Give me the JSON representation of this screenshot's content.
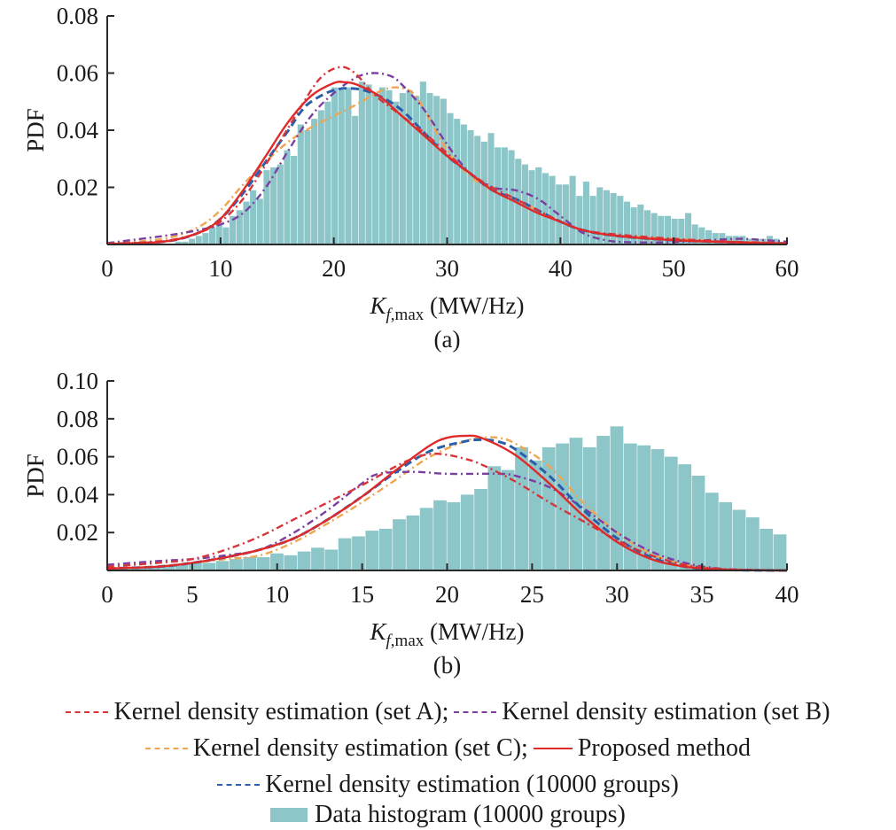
{
  "chart_data": [
    {
      "id": "a",
      "type": "bar",
      "panel_label": "(a)",
      "xlabel_main": "K",
      "xlabel_sub": "f,max",
      "xlabel_unit": " (MW/Hz)",
      "ylabel": "PDF",
      "xlim": [
        0,
        60
      ],
      "ylim": [
        0,
        0.08
      ],
      "xticks": [
        0,
        10,
        20,
        30,
        40,
        50,
        60
      ],
      "xtick_labels": [
        "0",
        "10",
        "20",
        "30",
        "40",
        "50",
        "60"
      ],
      "yticks": [
        0.02,
        0.04,
        0.06,
        0.08
      ],
      "ytick_labels": [
        "0.02",
        "0.04",
        "0.06",
        "0.08"
      ],
      "grid": false,
      "histogram": {
        "name": "Data histogram (10000 groups)",
        "bin_width": 0.6,
        "bin_start": 0,
        "values": [
          0,
          0,
          0,
          0,
          0,
          0,
          0,
          0,
          0,
          0,
          0.001,
          0.001,
          0.002,
          0.003,
          0.004,
          0.006,
          0.007,
          0.006,
          0.01,
          0.012,
          0.015,
          0.019,
          0.016,
          0.026,
          0.027,
          0.028,
          0.033,
          0.031,
          0.042,
          0.04,
          0.044,
          0.047,
          0.05,
          0.055,
          0.054,
          0.055,
          0.045,
          0.057,
          0.056,
          0.053,
          0.055,
          0.054,
          0.05,
          0.053,
          0.054,
          0.052,
          0.057,
          0.053,
          0.052,
          0.051,
          0.046,
          0.044,
          0.042,
          0.04,
          0.038,
          0.036,
          0.039,
          0.034,
          0.034,
          0.033,
          0.03,
          0.028,
          0.026,
          0.027,
          0.025,
          0.024,
          0.021,
          0.021,
          0.024,
          0.017,
          0.022,
          0.017,
          0.02,
          0.019,
          0.018,
          0.017,
          0.015,
          0.013,
          0.014,
          0.012,
          0.011,
          0.01,
          0.01,
          0.009,
          0.009,
          0.011,
          0.007,
          0.006,
          0.005,
          0.004,
          0.004,
          0.003,
          0.003,
          0.003,
          0.002,
          0.002,
          0.002,
          0.003,
          0.002,
          0.001,
          0.001,
          0.001,
          0.001,
          0.001,
          0,
          0,
          0,
          0,
          0,
          0
        ]
      },
      "series": [
        {
          "name": "Kernel density estimation (set A)",
          "key": "kdeA",
          "x": [
            0,
            5,
            8,
            10,
            12,
            14,
            16,
            18,
            19,
            20,
            21,
            22,
            23,
            24,
            26,
            28,
            30,
            32,
            34,
            36,
            38,
            40,
            42,
            45,
            50,
            55,
            60
          ],
          "y": [
            0.0003,
            0.0012,
            0.004,
            0.008,
            0.016,
            0.028,
            0.041,
            0.054,
            0.059,
            0.0615,
            0.062,
            0.0595,
            0.055,
            0.051,
            0.045,
            0.039,
            0.032,
            0.025,
            0.02,
            0.016,
            0.012,
            0.008,
            0.005,
            0.0035,
            0.002,
            0.001,
            0.0005
          ]
        },
        {
          "name": "Kernel density estimation (set B)",
          "key": "kdeB",
          "x": [
            0,
            5,
            8,
            10,
            12,
            14,
            16,
            18,
            20,
            22,
            23.5,
            25,
            26,
            28,
            30,
            32,
            34,
            36,
            38,
            40,
            42,
            44,
            46,
            50,
            53,
            56,
            58,
            60
          ],
          "y": [
            0.0005,
            0.003,
            0.005,
            0.007,
            0.011,
            0.02,
            0.033,
            0.045,
            0.053,
            0.0585,
            0.06,
            0.059,
            0.056,
            0.047,
            0.035,
            0.025,
            0.02,
            0.019,
            0.016,
            0.01,
            0.004,
            0.0015,
            0.0008,
            0.0008,
            0.0015,
            0.002,
            0.0015,
            0.001
          ]
        },
        {
          "name": "Kernel density estimation (set C)",
          "key": "kdeC",
          "x": [
            0,
            5,
            8,
            10,
            12,
            14,
            16,
            18,
            20,
            22,
            24,
            25.5,
            27,
            28,
            30,
            32,
            34,
            36,
            38,
            40,
            42,
            45,
            50,
            55,
            60
          ],
          "y": [
            0.0003,
            0.002,
            0.006,
            0.012,
            0.021,
            0.029,
            0.036,
            0.041,
            0.045,
            0.049,
            0.0535,
            0.055,
            0.053,
            0.047,
            0.033,
            0.024,
            0.019,
            0.016,
            0.012,
            0.008,
            0.005,
            0.003,
            0.002,
            0.001,
            0.0005
          ]
        },
        {
          "name": "Proposed method",
          "key": "proposed",
          "x": [
            0,
            5,
            8,
            10,
            12,
            14,
            16,
            18,
            20,
            21,
            22,
            24,
            26,
            28,
            30,
            32,
            34,
            36,
            38,
            40,
            42,
            45,
            50,
            55,
            60
          ],
          "y": [
            0.0002,
            0.001,
            0.004,
            0.009,
            0.019,
            0.031,
            0.043,
            0.052,
            0.0565,
            0.0568,
            0.056,
            0.052,
            0.045,
            0.038,
            0.031,
            0.025,
            0.019,
            0.015,
            0.011,
            0.008,
            0.005,
            0.003,
            0.0015,
            0.0008,
            0.0003
          ]
        },
        {
          "name": "Kernel density estimation (10000 groups)",
          "key": "kde10000",
          "x": [
            0,
            5,
            8,
            10,
            12,
            14,
            16,
            17,
            18,
            20,
            22,
            24,
            26,
            28,
            30,
            32,
            34,
            36,
            38,
            40,
            42,
            45,
            50,
            55,
            60
          ],
          "y": [
            0.0002,
            0.001,
            0.004,
            0.009,
            0.018,
            0.029,
            0.04,
            0.046,
            0.05,
            0.054,
            0.0545,
            0.052,
            0.047,
            0.039,
            0.031,
            0.025,
            0.019,
            0.016,
            0.012,
            0.008,
            0.005,
            0.003,
            0.0015,
            0.0008,
            0.0003
          ]
        }
      ]
    },
    {
      "id": "b",
      "type": "bar",
      "panel_label": "(b)",
      "xlabel_main": "K",
      "xlabel_sub": "f,max",
      "xlabel_unit": " (MW/Hz)",
      "ylabel": "PDF",
      "xlim": [
        0,
        40
      ],
      "ylim": [
        0,
        0.1
      ],
      "xticks": [
        0,
        5,
        10,
        15,
        20,
        25,
        30,
        35,
        40
      ],
      "xtick_labels": [
        "0",
        "5",
        "10",
        "15",
        "20",
        "25",
        "30",
        "35",
        "40"
      ],
      "yticks": [
        0.02,
        0.04,
        0.06,
        0.08,
        0.1
      ],
      "ytick_labels": [
        "0.02",
        "0.04",
        "0.06",
        "0.08",
        "0.10"
      ],
      "grid": false,
      "histogram": {
        "name": "Data histogram (10000 groups)",
        "bin_width": 0.8,
        "bin_start": 0,
        "values": [
          0.001,
          0.001,
          0.002,
          0.002,
          0.003,
          0.003,
          0.004,
          0.004,
          0.005,
          0.006,
          0.007,
          0.007,
          0.009,
          0.008,
          0.01,
          0.012,
          0.011,
          0.017,
          0.018,
          0.021,
          0.022,
          0.027,
          0.029,
          0.033,
          0.037,
          0.036,
          0.04,
          0.043,
          0.055,
          0.053,
          0.065,
          0.058,
          0.065,
          0.067,
          0.07,
          0.065,
          0.071,
          0.076,
          0.067,
          0.066,
          0.064,
          0.06,
          0.056,
          0.05,
          0.041,
          0.036,
          0.032,
          0.028,
          0.022,
          0.019,
          0.016,
          0.012,
          0.01,
          0.007,
          0.005,
          0.003,
          0.002,
          0.001,
          0.001,
          0.001,
          0,
          0,
          0,
          0,
          0,
          0,
          0,
          0,
          0,
          0,
          0,
          0,
          0,
          0,
          0,
          0,
          0,
          0,
          0,
          0
        ]
      },
      "series": [
        {
          "name": "Kernel density estimation (set A)",
          "key": "kdeA",
          "x": [
            0,
            3,
            5,
            7,
            9,
            11,
            13,
            15,
            17,
            18,
            19,
            20,
            21,
            22,
            24,
            26,
            28,
            30,
            32,
            34,
            36,
            38,
            40
          ],
          "y": [
            0.002,
            0.004,
            0.006,
            0.011,
            0.018,
            0.027,
            0.036,
            0.045,
            0.055,
            0.059,
            0.0615,
            0.061,
            0.059,
            0.056,
            0.047,
            0.036,
            0.026,
            0.016,
            0.008,
            0.003,
            0.0008,
            0.0002,
            0
          ]
        },
        {
          "name": "Kernel density estimation (set B)",
          "key": "kdeB",
          "x": [
            0,
            3,
            5,
            7,
            9,
            11,
            13,
            15,
            16,
            18,
            20,
            22,
            23,
            24,
            26,
            28,
            30,
            32,
            34,
            36,
            38,
            40
          ],
          "y": [
            0.003,
            0.005,
            0.006,
            0.008,
            0.011,
            0.02,
            0.032,
            0.046,
            0.051,
            0.052,
            0.051,
            0.051,
            0.051,
            0.05,
            0.044,
            0.033,
            0.02,
            0.01,
            0.004,
            0.001,
            0.0003,
            0
          ]
        },
        {
          "name": "Kernel density estimation (set C)",
          "key": "kdeC",
          "x": [
            0,
            3,
            5,
            7,
            9,
            11,
            13,
            15,
            17,
            19,
            21,
            22,
            23,
            24,
            26,
            28,
            30,
            32,
            34,
            36,
            38,
            40
          ],
          "y": [
            0.001,
            0.002,
            0.004,
            0.006,
            0.008,
            0.015,
            0.025,
            0.036,
            0.048,
            0.06,
            0.068,
            0.07,
            0.07,
            0.067,
            0.055,
            0.036,
            0.02,
            0.009,
            0.003,
            0.001,
            0.0002,
            0
          ]
        },
        {
          "name": "Proposed method",
          "key": "proposed",
          "x": [
            0,
            3,
            5,
            7,
            9,
            11,
            13,
            15,
            17,
            19,
            20,
            21,
            22,
            24,
            26,
            28,
            30,
            32,
            34,
            36,
            38,
            40
          ],
          "y": [
            0.001,
            0.002,
            0.004,
            0.007,
            0.011,
            0.017,
            0.027,
            0.039,
            0.053,
            0.066,
            0.07,
            0.071,
            0.07,
            0.061,
            0.046,
            0.029,
            0.015,
            0.006,
            0.002,
            0.0005,
            0.0001,
            0
          ]
        },
        {
          "name": "Kernel density estimation (10000 groups)",
          "key": "kde10000",
          "x": [
            0,
            3,
            5,
            7,
            9,
            11,
            13,
            15,
            17,
            19,
            21,
            22,
            23,
            24,
            26,
            28,
            30,
            32,
            34,
            36,
            38,
            40
          ],
          "y": [
            0.001,
            0.002,
            0.004,
            0.007,
            0.011,
            0.017,
            0.027,
            0.039,
            0.052,
            0.063,
            0.068,
            0.069,
            0.068,
            0.064,
            0.05,
            0.032,
            0.017,
            0.007,
            0.002,
            0.0005,
            0.0001,
            0
          ]
        }
      ]
    }
  ],
  "series_styles": {
    "kdeA": {
      "color": "#d8353a",
      "dash": "dashdot"
    },
    "kdeB": {
      "color": "#7a3fa0",
      "dash": "dashdot"
    },
    "kdeC": {
      "color": "#f0a550",
      "dash": "dashdot"
    },
    "proposed": {
      "color": "#e02a2a",
      "dash": "solid"
    },
    "kde10000": {
      "color": "#2b5ea8",
      "dash": "dashed"
    },
    "histogram": {
      "color": "#8cc6c8"
    }
  },
  "legend": {
    "rows": [
      [
        {
          "key": "kdeA",
          "label": "Kernel density estimation (set A);",
          "style": "dashed",
          "color": "#d8353a"
        },
        {
          "key": "kdeB",
          "label": "Kernel density estimation (set B)",
          "style": "dashed",
          "color": "#7a3fa0"
        }
      ],
      [
        {
          "key": "kdeC",
          "label": "Kernel density estimation (set C);",
          "style": "dashed",
          "color": "#f0a550"
        },
        {
          "key": "proposed",
          "label": "Proposed method",
          "style": "solid",
          "color": "#e02a2a"
        }
      ],
      [
        {
          "key": "kde10000",
          "label": "Kernel density estimation (10000 groups)",
          "style": "dashed",
          "color": "#2b5ea8"
        }
      ],
      [
        {
          "key": "histogram",
          "label": "Data histogram (10000 groups)",
          "style": "patch",
          "color": "#8cc6c8"
        }
      ]
    ]
  }
}
